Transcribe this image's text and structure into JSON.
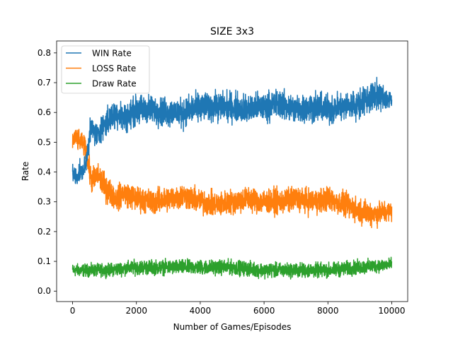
{
  "chart_data": {
    "type": "line",
    "title": "SIZE 3x3",
    "xlabel": "Number of Games/Episodes",
    "ylabel": "Rate",
    "xlim": [
      -500,
      10500
    ],
    "ylim": [
      -0.035,
      0.84
    ],
    "xticks": [
      0,
      2000,
      4000,
      6000,
      8000,
      10000
    ],
    "xtick_labels": [
      "0",
      "2000",
      "4000",
      "6000",
      "8000",
      "10000"
    ],
    "yticks": [
      0.0,
      0.1,
      0.2,
      0.3,
      0.4,
      0.5,
      0.6,
      0.7,
      0.8
    ],
    "ytick_labels": [
      "0.0",
      "0.1",
      "0.2",
      "0.3",
      "0.4",
      "0.5",
      "0.6",
      "0.7",
      "0.8"
    ],
    "grid": false,
    "legend_position": "top-left",
    "series": [
      {
        "name": "WIN Rate",
        "color": "#1f77b4",
        "x": [
          0,
          100,
          200,
          300,
          400,
          500,
          600,
          700,
          800,
          900,
          1000,
          1200,
          1400,
          1600,
          1800,
          2000,
          2500,
          3000,
          3500,
          4000,
          4500,
          5000,
          5500,
          6000,
          6500,
          7000,
          7500,
          8000,
          8500,
          9000,
          9500,
          10000
        ],
        "values": [
          0.4,
          0.38,
          0.4,
          0.4,
          0.42,
          0.5,
          0.55,
          0.53,
          0.52,
          0.55,
          0.56,
          0.58,
          0.6,
          0.58,
          0.59,
          0.61,
          0.61,
          0.6,
          0.6,
          0.62,
          0.62,
          0.62,
          0.61,
          0.62,
          0.63,
          0.61,
          0.62,
          0.61,
          0.62,
          0.63,
          0.66,
          0.64
        ],
        "spread": [
          0.04,
          0.05,
          0.05,
          0.04,
          0.05,
          0.06,
          0.06,
          0.06,
          0.06,
          0.06,
          0.07,
          0.07,
          0.07,
          0.07,
          0.07,
          0.07,
          0.07,
          0.07,
          0.07,
          0.07,
          0.07,
          0.07,
          0.07,
          0.07,
          0.07,
          0.07,
          0.07,
          0.07,
          0.07,
          0.07,
          0.07,
          0.05
        ]
      },
      {
        "name": "LOSS Rate",
        "color": "#ff7f0e",
        "x": [
          0,
          100,
          200,
          300,
          400,
          500,
          600,
          700,
          800,
          900,
          1000,
          1200,
          1400,
          1600,
          1800,
          2000,
          2500,
          3000,
          3500,
          4000,
          4500,
          5000,
          5500,
          6000,
          6500,
          7000,
          7500,
          8000,
          8500,
          9000,
          9500,
          10000
        ],
        "values": [
          0.5,
          0.52,
          0.5,
          0.5,
          0.48,
          0.42,
          0.37,
          0.38,
          0.39,
          0.37,
          0.35,
          0.33,
          0.31,
          0.33,
          0.32,
          0.31,
          0.3,
          0.31,
          0.32,
          0.3,
          0.29,
          0.3,
          0.31,
          0.3,
          0.3,
          0.31,
          0.3,
          0.31,
          0.29,
          0.27,
          0.26,
          0.27
        ],
        "spread": [
          0.04,
          0.05,
          0.05,
          0.04,
          0.05,
          0.06,
          0.06,
          0.06,
          0.06,
          0.06,
          0.07,
          0.06,
          0.06,
          0.06,
          0.06,
          0.06,
          0.06,
          0.06,
          0.06,
          0.06,
          0.06,
          0.06,
          0.06,
          0.06,
          0.06,
          0.06,
          0.06,
          0.06,
          0.06,
          0.06,
          0.06,
          0.05
        ]
      },
      {
        "name": "Draw Rate",
        "color": "#2ca02c",
        "x": [
          0,
          1000,
          2000,
          3000,
          4000,
          5000,
          6000,
          7000,
          8000,
          9000,
          10000
        ],
        "values": [
          0.07,
          0.07,
          0.08,
          0.08,
          0.08,
          0.08,
          0.07,
          0.07,
          0.07,
          0.08,
          0.09
        ],
        "spread": [
          0.03,
          0.03,
          0.035,
          0.035,
          0.035,
          0.035,
          0.035,
          0.035,
          0.035,
          0.035,
          0.03
        ]
      }
    ]
  }
}
